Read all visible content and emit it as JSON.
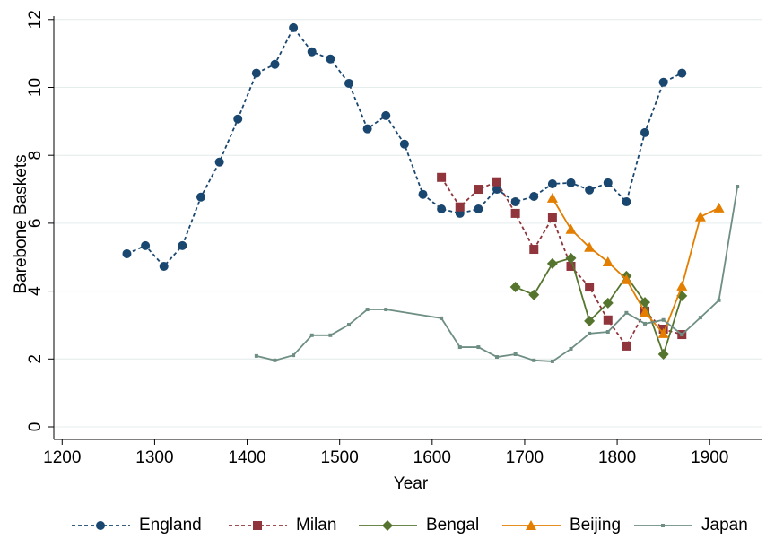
{
  "chart_data": {
    "type": "line",
    "x_label": "Year",
    "y_label": "Barebone Baskets",
    "xlim": [
      1191,
      1957
    ],
    "xticks": [
      1200,
      1300,
      1400,
      1500,
      1600,
      1700,
      1800,
      1900
    ],
    "ylim": [
      -0.37,
      12.1
    ],
    "yticks": [
      0,
      2,
      4,
      6,
      8,
      10,
      12
    ],
    "grid": true,
    "legend": "bottom",
    "series": [
      {
        "name": "England",
        "color": "#1a476f",
        "marker": "circle",
        "dashed": true,
        "x": [
          1270,
          1290,
          1310,
          1330,
          1350,
          1370,
          1390,
          1410,
          1430,
          1450,
          1470,
          1490,
          1510,
          1530,
          1550,
          1570,
          1590,
          1610,
          1630,
          1650,
          1670,
          1690,
          1710,
          1730,
          1750,
          1770,
          1790,
          1810,
          1830,
          1850,
          1870
        ],
        "values": [
          5.1,
          5.34,
          4.73,
          5.34,
          6.77,
          7.8,
          9.07,
          10.42,
          10.68,
          11.76,
          11.05,
          10.84,
          10.12,
          8.78,
          9.17,
          8.33,
          6.85,
          6.42,
          6.29,
          6.42,
          7.0,
          6.63,
          6.79,
          7.16,
          7.19,
          6.98,
          7.19,
          6.63,
          8.67,
          10.15,
          10.42
        ]
      },
      {
        "name": "Milan",
        "color": "#90353b",
        "marker": "square",
        "dashed": true,
        "x": [
          1610,
          1630,
          1650,
          1670,
          1690,
          1710,
          1730,
          1750,
          1770,
          1790,
          1810,
          1830,
          1850,
          1870
        ],
        "values": [
          7.35,
          6.48,
          7.0,
          7.22,
          6.29,
          5.23,
          6.16,
          4.73,
          4.12,
          3.15,
          2.38,
          3.41,
          2.88,
          2.72
        ]
      },
      {
        "name": "Bengal",
        "color": "#55752f",
        "marker": "diamond",
        "dashed": false,
        "x": [
          1690,
          1710,
          1730,
          1750,
          1770,
          1790,
          1810,
          1830,
          1850,
          1870
        ],
        "values": [
          4.12,
          3.89,
          4.81,
          4.97,
          3.12,
          3.65,
          4.44,
          3.67,
          2.14,
          3.86
        ]
      },
      {
        "name": "Beijing",
        "color": "#e37e00",
        "marker": "triangle",
        "dashed": false,
        "x": [
          1730,
          1750,
          1770,
          1790,
          1810,
          1830,
          1850,
          1870,
          1890,
          1910
        ],
        "values": [
          6.74,
          5.82,
          5.29,
          4.86,
          4.34,
          3.38,
          2.75,
          4.15,
          6.19,
          6.45
        ]
      },
      {
        "name": "Japan",
        "color": "#6e8e84",
        "marker": "small-square",
        "dashed": false,
        "x": [
          1410,
          1430,
          1450,
          1470,
          1490,
          1510,
          1530,
          1550,
          1610,
          1630,
          1650,
          1670,
          1690,
          1710,
          1730,
          1750,
          1770,
          1790,
          1810,
          1830,
          1850,
          1870,
          1890,
          1910,
          1930
        ],
        "values": [
          2.09,
          1.96,
          2.11,
          2.7,
          2.7,
          3.01,
          3.46,
          3.46,
          3.2,
          2.35,
          2.35,
          2.06,
          2.14,
          1.96,
          1.93,
          2.3,
          2.75,
          2.8,
          3.36,
          3.04,
          3.15,
          2.72,
          3.22,
          3.73,
          7.08
        ]
      }
    ]
  }
}
